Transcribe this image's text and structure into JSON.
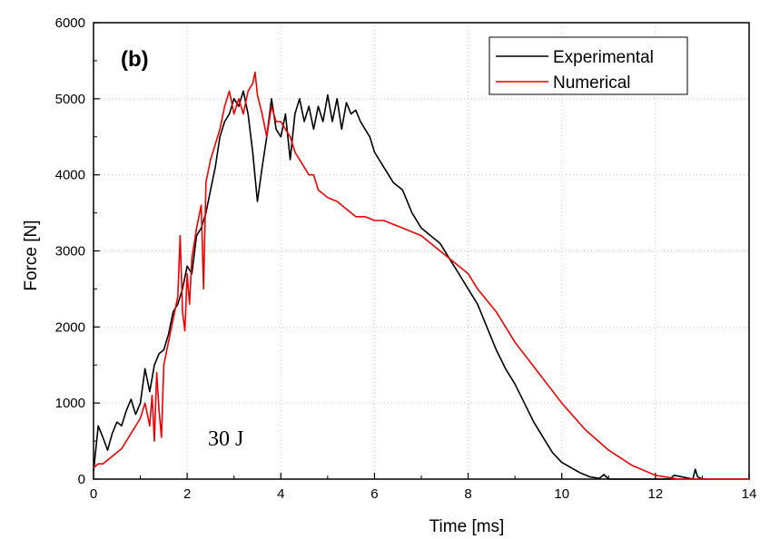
{
  "chart_data": {
    "type": "line",
    "panel_label": "(b)",
    "annotation": "30 J",
    "xlabel": "Time [ms]",
    "ylabel": "Force [N]",
    "xlim": [
      0,
      14
    ],
    "ylim": [
      0,
      6000
    ],
    "x_ticks": [
      "0",
      "2",
      "4",
      "6",
      "8",
      "10",
      "12",
      "14"
    ],
    "y_ticks": [
      "0",
      "1000",
      "2000",
      "3000",
      "4000",
      "5000",
      "6000"
    ],
    "grid": true,
    "legend_position": "top-right",
    "colors": {
      "Experimental": "#000000",
      "Numerical": "#ee0000"
    },
    "series": [
      {
        "name": "Experimental",
        "x": [
          0.0,
          0.1,
          0.2,
          0.3,
          0.4,
          0.5,
          0.6,
          0.7,
          0.8,
          0.9,
          1.0,
          1.1,
          1.2,
          1.3,
          1.4,
          1.5,
          1.6,
          1.7,
          1.8,
          1.9,
          2.0,
          2.1,
          2.2,
          2.3,
          2.4,
          2.5,
          2.6,
          2.7,
          2.8,
          2.9,
          3.0,
          3.1,
          3.2,
          3.3,
          3.4,
          3.5,
          3.6,
          3.7,
          3.8,
          3.9,
          4.0,
          4.1,
          4.2,
          4.3,
          4.4,
          4.5,
          4.6,
          4.7,
          4.8,
          4.9,
          5.0,
          5.1,
          5.2,
          5.3,
          5.4,
          5.5,
          5.6,
          5.7,
          5.8,
          5.9,
          6.0,
          6.2,
          6.4,
          6.6,
          6.8,
          7.0,
          7.2,
          7.4,
          7.6,
          7.8,
          8.0,
          8.2,
          8.4,
          8.6,
          8.8,
          9.0,
          9.2,
          9.4,
          9.6,
          9.8,
          10.0,
          10.2,
          10.4,
          10.6,
          10.8,
          10.9,
          11.0,
          11.2,
          12.0,
          12.3,
          12.4,
          12.8,
          12.85,
          12.9,
          13.0,
          13.1
        ],
        "y": [
          100,
          700,
          550,
          380,
          600,
          750,
          700,
          900,
          1050,
          850,
          1000,
          1450,
          1150,
          1500,
          1650,
          1700,
          1900,
          2200,
          2300,
          2500,
          2800,
          2700,
          3200,
          3300,
          3500,
          3800,
          4100,
          4500,
          4700,
          4800,
          5000,
          4900,
          5100,
          4800,
          4300,
          3650,
          4100,
          4500,
          5000,
          4600,
          4500,
          4800,
          4200,
          4800,
          5000,
          4700,
          4900,
          4600,
          4900,
          4700,
          5050,
          4700,
          5000,
          4600,
          4950,
          4800,
          4850,
          4700,
          4600,
          4500,
          4300,
          4100,
          3900,
          3800,
          3500,
          3300,
          3200,
          3100,
          2900,
          2700,
          2500,
          2300,
          2000,
          1700,
          1450,
          1250,
          1000,
          750,
          550,
          350,
          220,
          150,
          80,
          30,
          10,
          60,
          0,
          0,
          0,
          0,
          50,
          0,
          130,
          30,
          0,
          0
        ]
      },
      {
        "name": "Numerical",
        "x": [
          0.0,
          0.1,
          0.2,
          0.4,
          0.6,
          0.8,
          1.0,
          1.1,
          1.2,
          1.25,
          1.3,
          1.35,
          1.4,
          1.45,
          1.5,
          1.6,
          1.7,
          1.8,
          1.85,
          1.9,
          1.95,
          2.0,
          2.05,
          2.1,
          2.2,
          2.3,
          2.35,
          2.4,
          2.5,
          2.6,
          2.7,
          2.8,
          2.9,
          3.0,
          3.1,
          3.2,
          3.3,
          3.4,
          3.45,
          3.5,
          3.6,
          3.7,
          3.8,
          3.9,
          4.0,
          4.1,
          4.2,
          4.3,
          4.4,
          4.5,
          4.6,
          4.7,
          4.8,
          5.0,
          5.2,
          5.4,
          5.6,
          5.8,
          6.0,
          6.2,
          6.4,
          6.6,
          6.8,
          7.0,
          7.2,
          7.4,
          7.6,
          7.8,
          8.0,
          8.2,
          8.4,
          8.6,
          8.8,
          9.0,
          9.5,
          10.0,
          10.5,
          11.0,
          11.5,
          12.0,
          12.5,
          13.0,
          13.5,
          14.0
        ],
        "y": [
          150,
          200,
          200,
          300,
          400,
          600,
          800,
          1000,
          700,
          1100,
          500,
          1400,
          900,
          550,
          1500,
          1800,
          2100,
          2400,
          3200,
          2200,
          1950,
          2700,
          2300,
          2900,
          3300,
          3600,
          2500,
          3900,
          4200,
          4400,
          4600,
          4900,
          5100,
          4800,
          5000,
          4800,
          5100,
          5200,
          5350,
          5050,
          4800,
          4500,
          4900,
          4700,
          4700,
          4600,
          4500,
          4300,
          4200,
          4100,
          4000,
          4000,
          3800,
          3700,
          3650,
          3550,
          3450,
          3450,
          3400,
          3400,
          3350,
          3300,
          3250,
          3200,
          3100,
          3000,
          2900,
          2800,
          2700,
          2500,
          2350,
          2200,
          2000,
          1800,
          1400,
          1000,
          650,
          380,
          180,
          50,
          0,
          0,
          0,
          0
        ]
      }
    ]
  }
}
